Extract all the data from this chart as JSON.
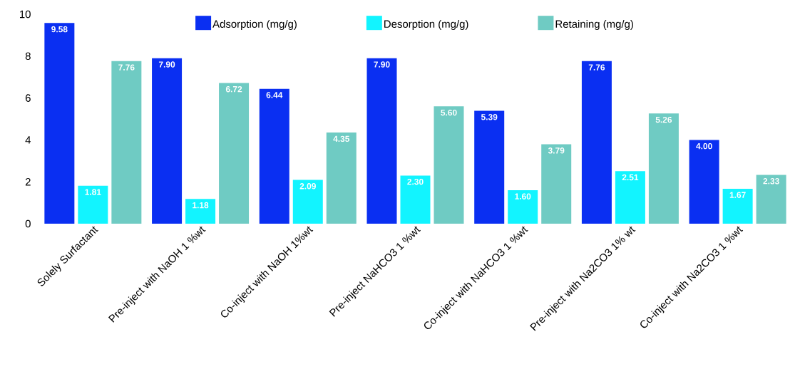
{
  "chart_data": {
    "type": "bar",
    "categories": [
      "Solely Surfactant",
      "Pre-inject with NaOH 1 %wt",
      "Co-inject with NaOH 1%wt",
      "Pre-inject NaHCO3 1 %wt",
      "Co-inject with NaHCO3 1 %wt",
      "Pre-inject with Na2CO3 1% wt",
      "Co-inject with Na2CO3 1 %wt"
    ],
    "series": [
      {
        "name": "Adsorption (mg/g)",
        "color": "#0a2ff2",
        "values": [
          9.58,
          7.9,
          6.44,
          7.9,
          5.39,
          7.76,
          4.0
        ],
        "value_labels": [
          "9.58",
          "7.90",
          "6.44",
          "7.90",
          "5.39",
          "7.76",
          "4.00"
        ]
      },
      {
        "name": "Desorption (mg/g)",
        "color": "#12f4ff",
        "values": [
          1.81,
          1.18,
          2.09,
          2.3,
          1.6,
          2.51,
          1.67
        ],
        "value_labels": [
          "1.81",
          "1.18",
          "2.09",
          "2.30",
          "1.60",
          "2.51",
          "1.67"
        ]
      },
      {
        "name": "Retaining (mg/g)",
        "color": "#6fcbc3",
        "values": [
          7.76,
          6.72,
          4.35,
          5.6,
          3.79,
          5.26,
          2.33
        ],
        "value_labels": [
          "7.76",
          "6.72",
          "4.35",
          "5.60",
          "3.79",
          "5.26",
          "2.33"
        ]
      }
    ],
    "ylim": [
      0,
      10
    ],
    "yticks": [
      0,
      2,
      4,
      6,
      8,
      10
    ],
    "legend": "top",
    "grid": false
  }
}
